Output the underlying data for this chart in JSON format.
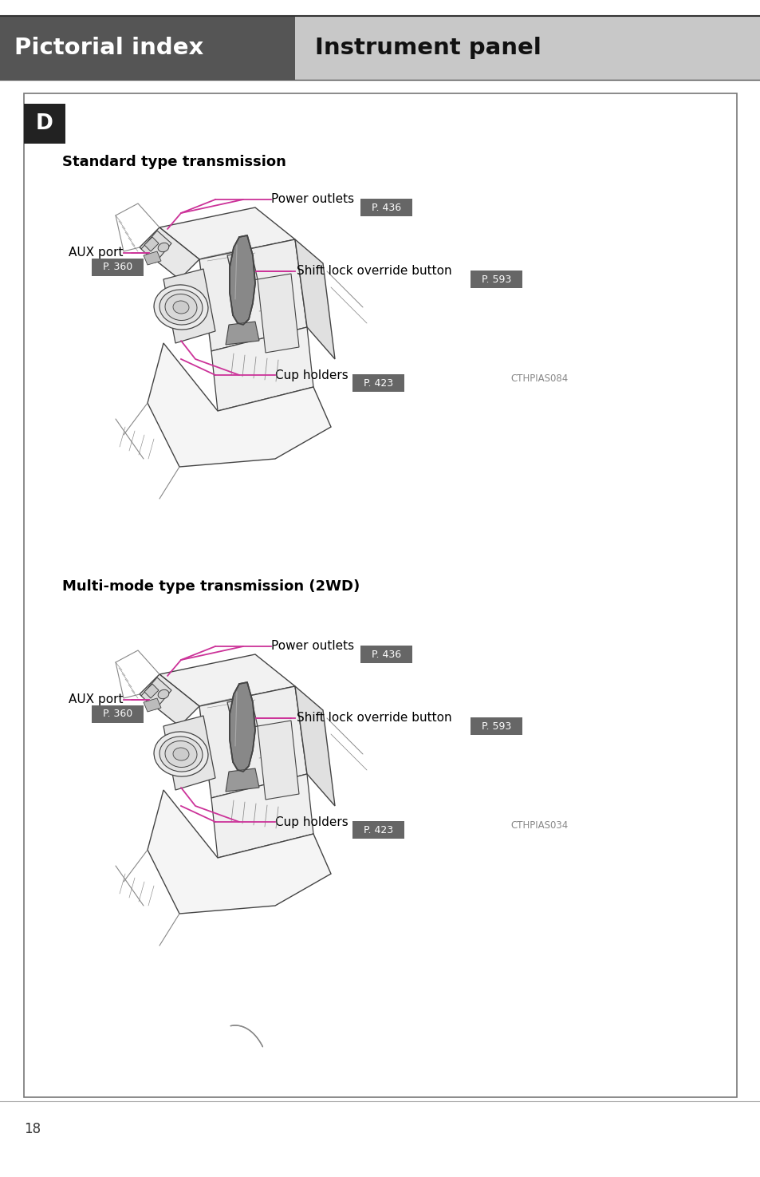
{
  "page_bg": "#ffffff",
  "header_left_color": "#555555",
  "header_right_color": "#c8c8c8",
  "header_left_text": "Pictorial index",
  "header_right_text": "Instrument panel",
  "header_left_text_color": "#ffffff",
  "header_right_text_color": "#111111",
  "box_border_color": "#777777",
  "D_label": "D",
  "section1_title": "Standard type transmission",
  "section2_title": "Multi-mode type transmission (2WD)",
  "badge_color": "#666666",
  "badge_text_color": "#ffffff",
  "magenta": "#cc3399",
  "annotation_color": "#000000",
  "label1_power_outlets": "Power outlets",
  "badge1_power": "P. 436",
  "label1_aux": "AUX port",
  "badge1_aux": "P. 360",
  "label1_shift": "Shift lock override button",
  "badge1_shift": "P. 593",
  "label1_cup": "Cup holders",
  "badge1_cup": "P. 423",
  "code1": "CTHPIAS084",
  "label2_power_outlets": "Power outlets",
  "badge2_power": "P. 436",
  "label2_aux": "AUX port",
  "badge2_aux": "P. 360",
  "label2_shift": "Shift lock override button",
  "badge2_shift": "P. 593",
  "label2_cup": "Cup holders",
  "badge2_cup": "P. 423",
  "code2": "CTHPIAS034",
  "footer_text": "18"
}
